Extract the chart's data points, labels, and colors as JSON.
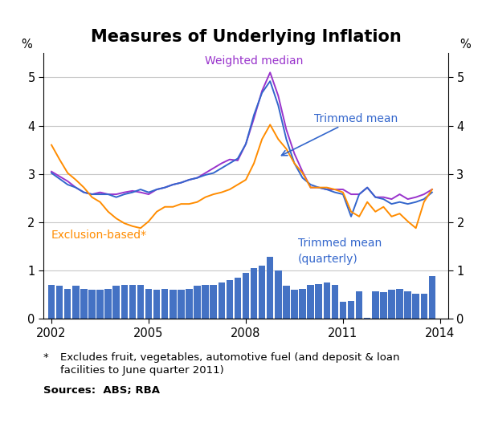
{
  "title": "Measures of Underlying Inflation",
  "title_fontsize": 15,
  "ylabel_left": "%",
  "ylabel_right": "%",
  "ylim": [
    0,
    5.5
  ],
  "yticks": [
    0,
    1,
    2,
    3,
    4,
    5
  ],
  "xlim_start": 2001.75,
  "xlim_end": 2014.25,
  "xticks": [
    2002,
    2005,
    2008,
    2011,
    2014
  ],
  "footnote_star": "*",
  "footnote_text1": "Excludes fruit, vegetables, automotive fuel (and deposit & loan",
  "footnote_text2": "facilities to June quarter 2011)",
  "footnote_sources": "Sources:  ABS; RBA",
  "background_color": "#ffffff",
  "grid_color": "#c8c8c8",
  "weighted_median_color": "#9933CC",
  "trimmed_mean_annual_color": "#3366CC",
  "exclusion_based_color": "#FF8C00",
  "bar_color": "#4472C4",
  "weighted_median_label": "Weighted median",
  "trimmed_mean_label": "Trimmed mean",
  "exclusion_label": "Exclusion-based*",
  "bar_label_line1": "Trimmed mean",
  "bar_label_line2": "(quarterly)",
  "quarterly_dates": [
    2002.0,
    2002.25,
    2002.5,
    2002.75,
    2003.0,
    2003.25,
    2003.5,
    2003.75,
    2004.0,
    2004.25,
    2004.5,
    2004.75,
    2005.0,
    2005.25,
    2005.5,
    2005.75,
    2006.0,
    2006.25,
    2006.5,
    2006.75,
    2007.0,
    2007.25,
    2007.5,
    2007.75,
    2008.0,
    2008.25,
    2008.5,
    2008.75,
    2009.0,
    2009.25,
    2009.5,
    2009.75,
    2010.0,
    2010.25,
    2010.5,
    2010.75,
    2011.0,
    2011.25,
    2011.5,
    2011.75,
    2012.0,
    2012.25,
    2012.5,
    2012.75,
    2013.0,
    2013.25,
    2013.5,
    2013.75
  ],
  "trimmed_mean_quarterly": [
    0.7,
    0.68,
    0.62,
    0.68,
    0.62,
    0.6,
    0.6,
    0.62,
    0.68,
    0.7,
    0.7,
    0.7,
    0.62,
    0.6,
    0.62,
    0.6,
    0.6,
    0.62,
    0.68,
    0.7,
    0.7,
    0.75,
    0.8,
    0.85,
    0.95,
    1.05,
    1.1,
    1.28,
    1.0,
    0.68,
    0.6,
    0.62,
    0.7,
    0.72,
    0.75,
    0.7,
    0.35,
    0.38,
    0.58,
    0.02,
    0.58,
    0.55,
    0.6,
    0.62,
    0.58,
    0.52,
    0.52,
    0.88
  ],
  "annual_dates": [
    2002.0,
    2002.25,
    2002.5,
    2002.75,
    2003.0,
    2003.25,
    2003.5,
    2003.75,
    2004.0,
    2004.25,
    2004.5,
    2004.75,
    2005.0,
    2005.25,
    2005.5,
    2005.75,
    2006.0,
    2006.25,
    2006.5,
    2006.75,
    2007.0,
    2007.25,
    2007.5,
    2007.75,
    2008.0,
    2008.25,
    2008.5,
    2008.75,
    2009.0,
    2009.25,
    2009.5,
    2009.75,
    2010.0,
    2010.25,
    2010.5,
    2010.75,
    2011.0,
    2011.25,
    2011.5,
    2011.75,
    2012.0,
    2012.25,
    2012.5,
    2012.75,
    2013.0,
    2013.25,
    2013.5,
    2013.75
  ],
  "weighted_median": [
    3.05,
    2.95,
    2.85,
    2.72,
    2.62,
    2.58,
    2.62,
    2.58,
    2.58,
    2.62,
    2.65,
    2.62,
    2.58,
    2.68,
    2.72,
    2.78,
    2.82,
    2.88,
    2.92,
    3.02,
    3.12,
    3.22,
    3.3,
    3.28,
    3.62,
    4.15,
    4.72,
    5.1,
    4.62,
    3.92,
    3.42,
    3.05,
    2.72,
    2.72,
    2.68,
    2.68,
    2.68,
    2.58,
    2.58,
    2.72,
    2.52,
    2.52,
    2.48,
    2.58,
    2.48,
    2.52,
    2.58,
    2.68
  ],
  "trimmed_mean_annual": [
    3.02,
    2.9,
    2.78,
    2.72,
    2.62,
    2.58,
    2.58,
    2.58,
    2.52,
    2.58,
    2.62,
    2.68,
    2.62,
    2.68,
    2.72,
    2.78,
    2.82,
    2.88,
    2.92,
    2.98,
    3.02,
    3.12,
    3.22,
    3.32,
    3.62,
    4.22,
    4.68,
    4.92,
    4.42,
    3.72,
    3.22,
    2.92,
    2.78,
    2.72,
    2.68,
    2.62,
    2.58,
    2.12,
    2.58,
    2.72,
    2.52,
    2.48,
    2.38,
    2.42,
    2.38,
    2.42,
    2.48,
    2.62
  ],
  "exclusion_based": [
    3.6,
    3.3,
    3.02,
    2.88,
    2.72,
    2.52,
    2.42,
    2.22,
    2.08,
    1.98,
    1.92,
    1.88,
    2.02,
    2.22,
    2.32,
    2.32,
    2.38,
    2.38,
    2.42,
    2.52,
    2.58,
    2.62,
    2.68,
    2.78,
    2.88,
    3.22,
    3.72,
    4.02,
    3.72,
    3.52,
    3.22,
    3.02,
    2.72,
    2.72,
    2.72,
    2.68,
    2.62,
    2.22,
    2.12,
    2.42,
    2.22,
    2.32,
    2.12,
    2.18,
    2.02,
    1.88,
    2.42,
    2.68
  ]
}
